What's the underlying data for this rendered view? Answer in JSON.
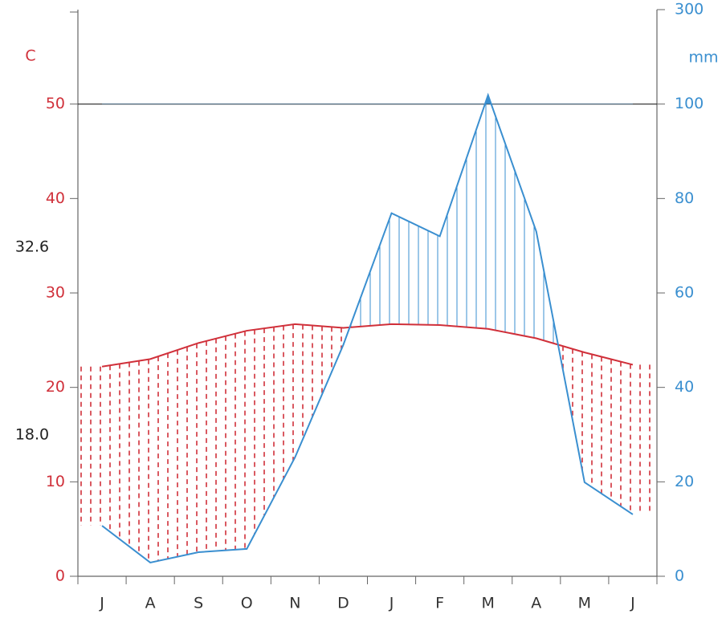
{
  "chart_data": {
    "type": "climate",
    "y_label": "C",
    "y2_label": "mm",
    "annotations": [
      "32.6",
      "18.0"
    ],
    "categories": [
      "J",
      "A",
      "S",
      "O",
      "N",
      "D",
      "J",
      "F",
      "M",
      "A",
      "M",
      "J"
    ],
    "series": [
      {
        "name": "Temperature",
        "color": "#d0303a",
        "values": [
          22.2,
          23.0,
          24.7,
          26.0,
          26.7,
          26.3,
          26.7,
          26.6,
          26.2,
          25.2,
          23.7,
          22.4
        ]
      },
      {
        "name": "Precipitation",
        "color": "#3a8fd0",
        "axis": "y2",
        "values": [
          10.7,
          2.9,
          5.1,
          5.8,
          25.2,
          49,
          76.9,
          72,
          119,
          73,
          19.9,
          13.1
        ]
      }
    ],
    "ylim": [
      0,
      60
    ],
    "yticks": [
      0,
      10,
      20,
      30,
      40,
      50
    ],
    "y2lim": [
      0,
      300
    ],
    "y2ticks": [
      0,
      20,
      40,
      60,
      80,
      100,
      300
    ]
  }
}
